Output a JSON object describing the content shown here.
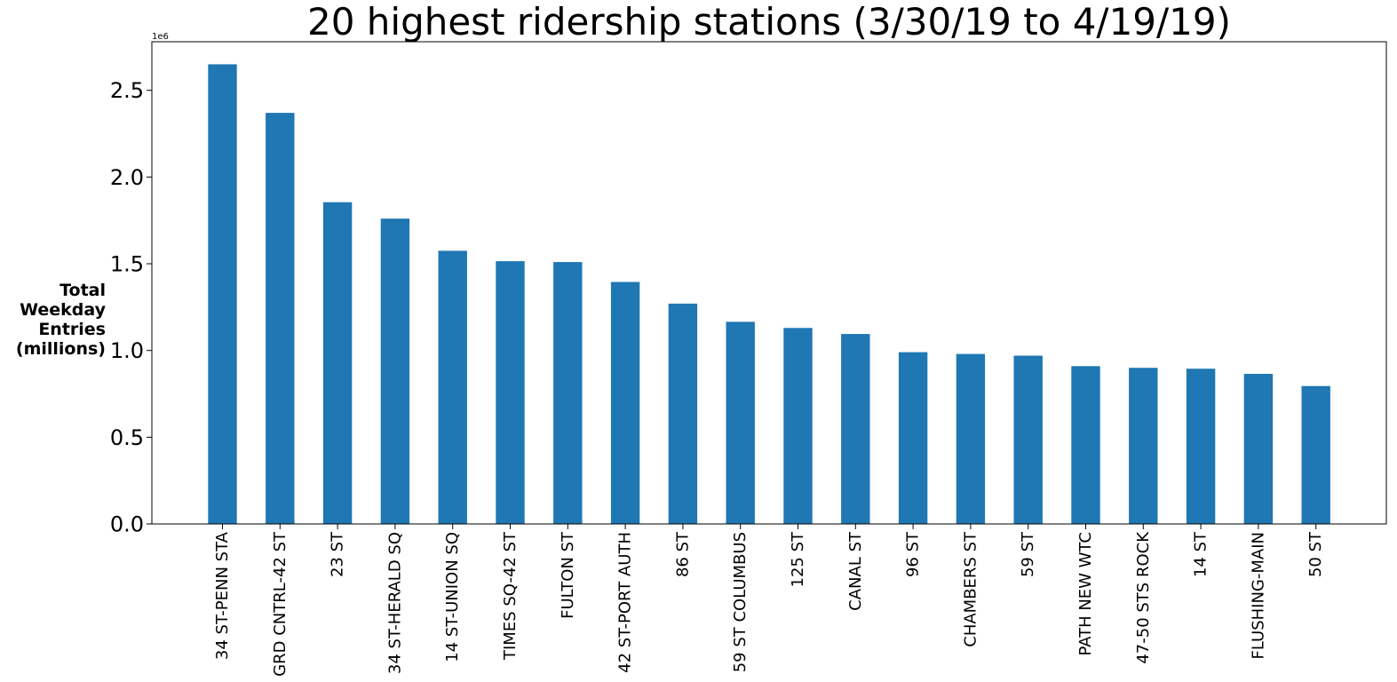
{
  "chart_data": {
    "type": "bar",
    "title": "20 highest ridership stations (3/30/19 to 4/19/19)",
    "xlabel": "",
    "ylabel": [
      "Total",
      "Weekday",
      "Entries",
      "(millions)"
    ],
    "y_offset_label": "1e6",
    "ylim": [
      0,
      2.78
    ],
    "yticks": [
      0.0,
      0.5,
      1.0,
      1.5,
      2.0,
      2.5
    ],
    "ytick_labels": [
      "0.0",
      "0.5",
      "1.0",
      "1.5",
      "2.0",
      "2.5"
    ],
    "grid": false,
    "bar_color": "#1f77b4",
    "categories": [
      "34 ST-PENN STA",
      "GRD CNTRL-42 ST",
      "23 ST",
      "34 ST-HERALD SQ",
      "14 ST-UNION SQ",
      "TIMES SQ-42 ST",
      "FULTON ST",
      "42 ST-PORT AUTH",
      "86 ST",
      "59 ST COLUMBUS",
      "125 ST",
      "CANAL ST",
      "96 ST",
      "CHAMBERS ST",
      "59 ST",
      "PATH NEW WTC",
      "47-50 STS ROCK",
      "14 ST",
      "FLUSHING-MAIN",
      "50 ST"
    ],
    "values": [
      2.65,
      2.37,
      1.855,
      1.76,
      1.575,
      1.515,
      1.51,
      1.395,
      1.27,
      1.165,
      1.13,
      1.095,
      0.99,
      0.98,
      0.97,
      0.91,
      0.9,
      0.895,
      0.865,
      0.795
    ]
  }
}
